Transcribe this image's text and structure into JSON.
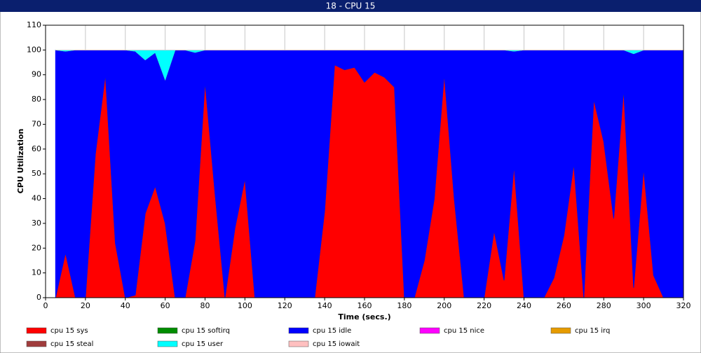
{
  "window_title": "18 - CPU 15",
  "chart_data": {
    "type": "stacked-area",
    "x_label": "Time (secs.)",
    "y_label": "CPU Utilization",
    "x": [
      5,
      10,
      15,
      20,
      25,
      30,
      35,
      40,
      45,
      50,
      55,
      60,
      65,
      70,
      75,
      80,
      85,
      90,
      95,
      100,
      105,
      110,
      115,
      120,
      125,
      130,
      135,
      140,
      145,
      150,
      155,
      160,
      165,
      170,
      175,
      180,
      185,
      190,
      195,
      200,
      205,
      210,
      215,
      220,
      225,
      230,
      235,
      240,
      245,
      250,
      255,
      260,
      265,
      270,
      275,
      280,
      285,
      290,
      295,
      300,
      305,
      310,
      315,
      320
    ],
    "series": [
      {
        "name": "cpu 15 sys",
        "color": "#ff0000",
        "values": [
          0,
          18,
          0,
          0,
          58,
          90,
          22,
          0,
          1,
          34,
          45,
          30,
          0,
          0,
          23,
          87,
          42,
          0,
          28,
          48,
          0,
          0,
          0,
          0,
          0,
          0,
          0,
          35,
          94,
          92,
          93,
          87,
          91,
          89,
          85,
          0,
          0,
          15,
          40,
          90,
          40,
          0,
          0,
          0,
          27,
          7,
          53,
          0,
          0,
          0,
          8,
          25,
          54,
          0,
          80,
          63,
          32,
          84,
          4,
          52,
          9,
          0,
          0,
          0
        ]
      },
      {
        "name": "cpu 15 softirq",
        "color": "#008c00",
        "values": [
          0,
          0,
          0,
          0,
          0,
          0,
          0,
          0,
          0,
          0,
          0,
          0,
          0,
          0,
          0,
          0,
          0,
          0,
          0,
          0,
          0,
          0,
          0,
          0,
          0,
          0,
          0,
          0,
          0,
          0,
          0,
          0,
          0,
          0,
          0,
          0,
          0,
          0,
          0,
          0,
          0,
          0,
          0,
          0,
          0,
          0,
          0,
          0,
          0,
          0,
          0,
          0,
          0,
          0,
          0,
          0,
          0,
          0,
          0,
          0,
          0,
          0,
          0,
          0
        ]
      },
      {
        "name": "cpu 15 idle",
        "color": "#0000ff",
        "values": [
          100,
          81.5,
          100,
          100,
          42,
          10,
          78,
          100,
          98.5,
          62,
          54,
          58,
          100,
          100,
          76,
          13,
          58,
          100,
          72,
          52,
          100,
          100,
          100,
          100,
          100,
          100,
          100,
          65,
          6,
          8,
          7,
          13,
          9,
          11,
          15,
          100,
          100,
          85,
          60,
          10,
          60,
          100,
          100,
          100,
          73,
          93,
          46.5,
          100,
          100,
          100,
          92,
          75,
          46,
          100,
          20,
          37,
          68,
          16,
          94.5,
          48,
          91,
          100,
          100,
          100
        ]
      },
      {
        "name": "cpu 15 nice",
        "color": "#ff00ff",
        "values": [
          0,
          0,
          0,
          0,
          0,
          0,
          0,
          0,
          0,
          0,
          0,
          0,
          0,
          0,
          0,
          0,
          0,
          0,
          0,
          0,
          0,
          0,
          0,
          0,
          0,
          0,
          0,
          0,
          0,
          0,
          0,
          0,
          0,
          0,
          0,
          0,
          0,
          0,
          0,
          0,
          0,
          0,
          0,
          0,
          0,
          0,
          0,
          0,
          0,
          0,
          0,
          0,
          0,
          0,
          0,
          0,
          0,
          0,
          0,
          0,
          0,
          0,
          0,
          0
        ]
      },
      {
        "name": "cpu 15 irq",
        "color": "#e69b00",
        "values": [
          0,
          0,
          0,
          0,
          0,
          0,
          0,
          0,
          0,
          0,
          0,
          0,
          0,
          0,
          0,
          0,
          0,
          0,
          0,
          0,
          0,
          0,
          0,
          0,
          0,
          0,
          0,
          0,
          0,
          0,
          0,
          0,
          0,
          0,
          0,
          0,
          0,
          0,
          0,
          0,
          0,
          0,
          0,
          0,
          0,
          0,
          0,
          0,
          0,
          0,
          0,
          0,
          0,
          0,
          0,
          0,
          0,
          0,
          0,
          0,
          0,
          0,
          0,
          0
        ]
      },
      {
        "name": "cpu 15 steal",
        "color": "#a03c3c",
        "values": [
          0,
          0,
          0,
          0,
          0,
          0,
          0,
          0,
          0,
          0,
          0,
          0,
          0,
          0,
          0,
          0,
          0,
          0,
          0,
          0,
          0,
          0,
          0,
          0,
          0,
          0,
          0,
          0,
          0,
          0,
          0,
          0,
          0,
          0,
          0,
          0,
          0,
          0,
          0,
          0,
          0,
          0,
          0,
          0,
          0,
          0,
          0,
          0,
          0,
          0,
          0,
          0,
          0,
          0,
          0,
          0,
          0,
          0,
          0,
          0,
          0,
          0,
          0,
          0
        ]
      },
      {
        "name": "cpu 15 user",
        "color": "#00ffff",
        "values": [
          0,
          0.5,
          0,
          0,
          0,
          0,
          0,
          0,
          0.5,
          4,
          1,
          12,
          0,
          0,
          1,
          0,
          0,
          0,
          0,
          0,
          0,
          0,
          0,
          0,
          0,
          0,
          0,
          0,
          0,
          0,
          0,
          0,
          0,
          0,
          0,
          0,
          0,
          0,
          0,
          0,
          0,
          0,
          0,
          0,
          0,
          0,
          0.5,
          0,
          0,
          0,
          0,
          0,
          0,
          0,
          0,
          0,
          0,
          0,
          1.5,
          0,
          0,
          0,
          0,
          0
        ]
      },
      {
        "name": "cpu 15 iowait",
        "color": "#ffc0c0",
        "values": [
          0,
          0,
          0,
          0,
          0,
          0,
          0,
          0,
          0,
          0,
          0,
          0,
          0,
          0,
          0,
          0,
          0,
          0,
          0,
          0,
          0,
          0,
          0,
          0,
          0,
          0,
          0,
          0,
          0,
          0,
          0,
          0,
          0,
          0,
          0,
          0,
          0,
          0,
          0,
          0,
          0,
          0,
          0,
          0,
          0,
          0,
          0,
          0,
          0,
          0,
          0,
          0,
          0,
          0,
          0,
          0,
          0,
          0,
          0,
          0,
          0,
          0,
          0,
          0
        ]
      }
    ],
    "xlim": [
      0,
      320
    ],
    "xticks": [
      0,
      20,
      40,
      60,
      80,
      100,
      120,
      140,
      160,
      180,
      200,
      220,
      240,
      260,
      280,
      300,
      320
    ],
    "ylim": [
      0,
      110
    ],
    "yticks": [
      0,
      10,
      20,
      30,
      40,
      50,
      60,
      70,
      80,
      90,
      100,
      110
    ],
    "grid": true
  }
}
